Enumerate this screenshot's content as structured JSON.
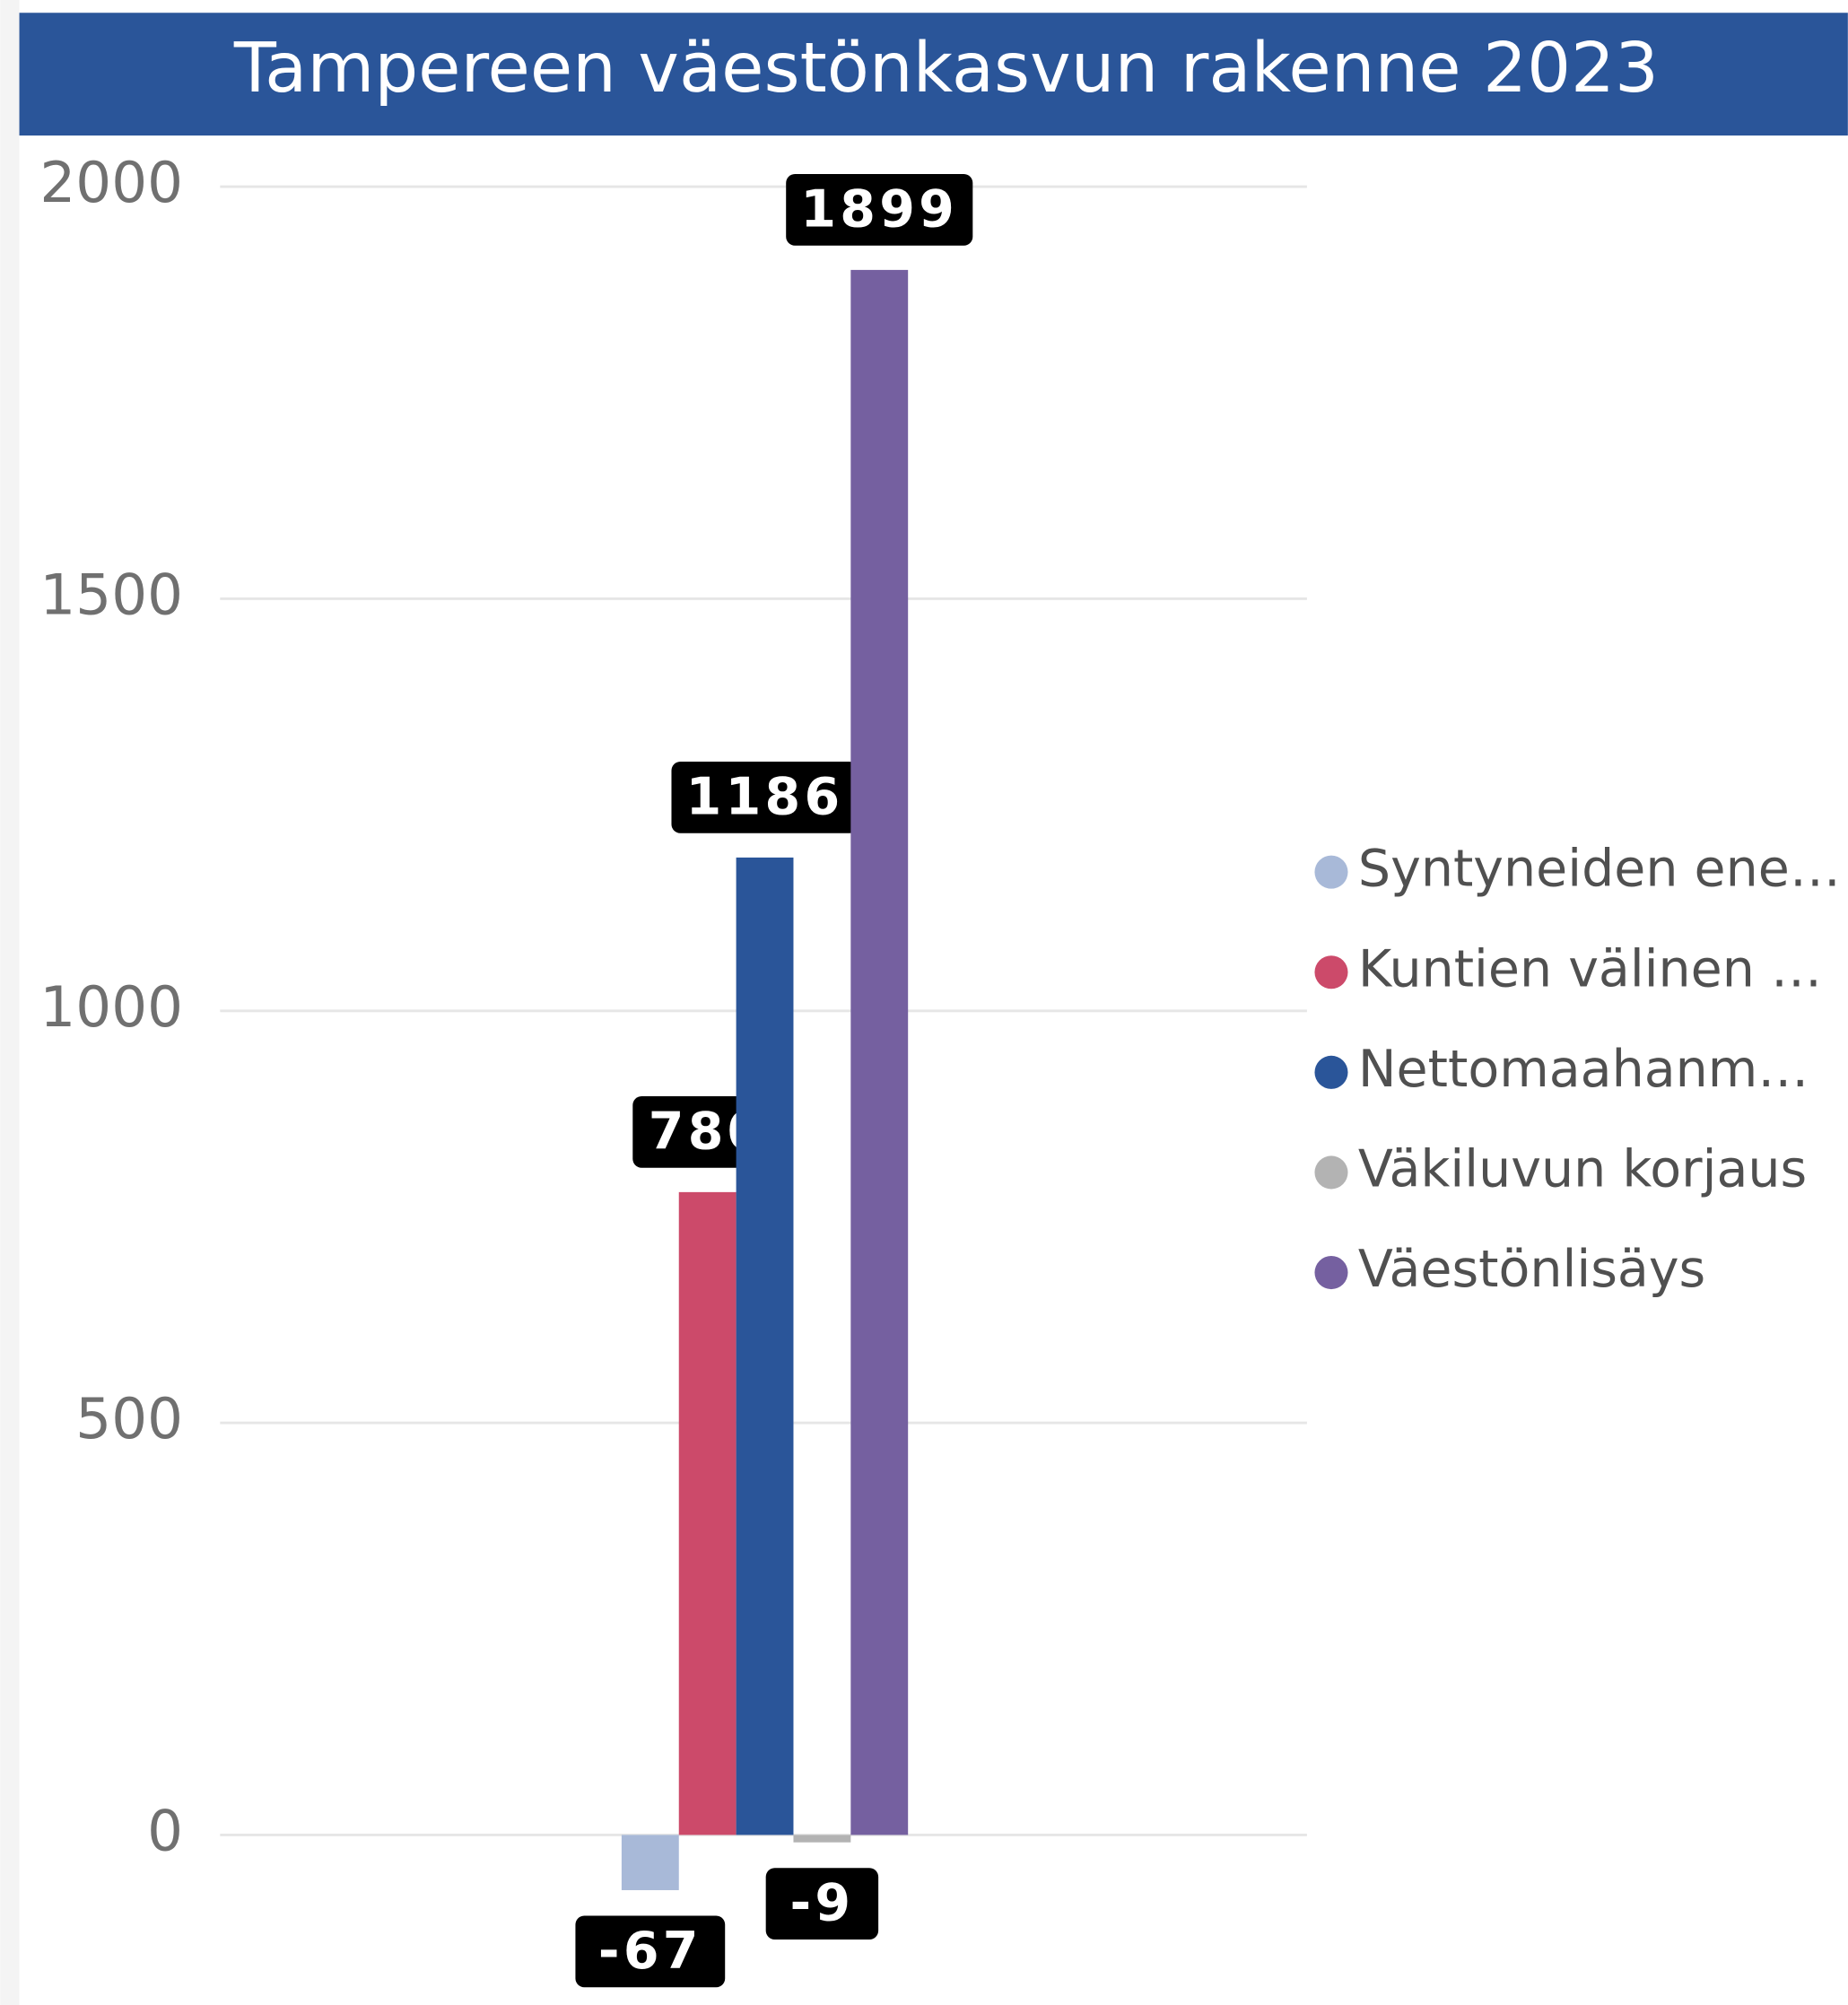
{
  "chart_data": {
    "type": "bar",
    "title": "Tampereen väestönkasvun rakenne 2023",
    "categories": [
      null
    ],
    "series": [
      {
        "name": "Syntyneiden ene…",
        "color": "#a8b9d8",
        "values": [
          -67
        ]
      },
      {
        "name": "Kuntien välinen …",
        "color": "#cc4a6a",
        "values": [
          780
        ]
      },
      {
        "name": "Nettomaahanm…",
        "color": "#2a5599",
        "values": [
          1186
        ]
      },
      {
        "name": "Väkiluvun korjaus",
        "color": "#b3b3b3",
        "values": [
          -9
        ]
      },
      {
        "name": "Väestönlisäys",
        "color": "#7560a0",
        "values": [
          1899
        ]
      }
    ],
    "ylim": [
      -200,
      2000
    ],
    "yticks": [
      0,
      500,
      1000,
      1500,
      2000
    ],
    "grid": true,
    "legend": "right"
  }
}
